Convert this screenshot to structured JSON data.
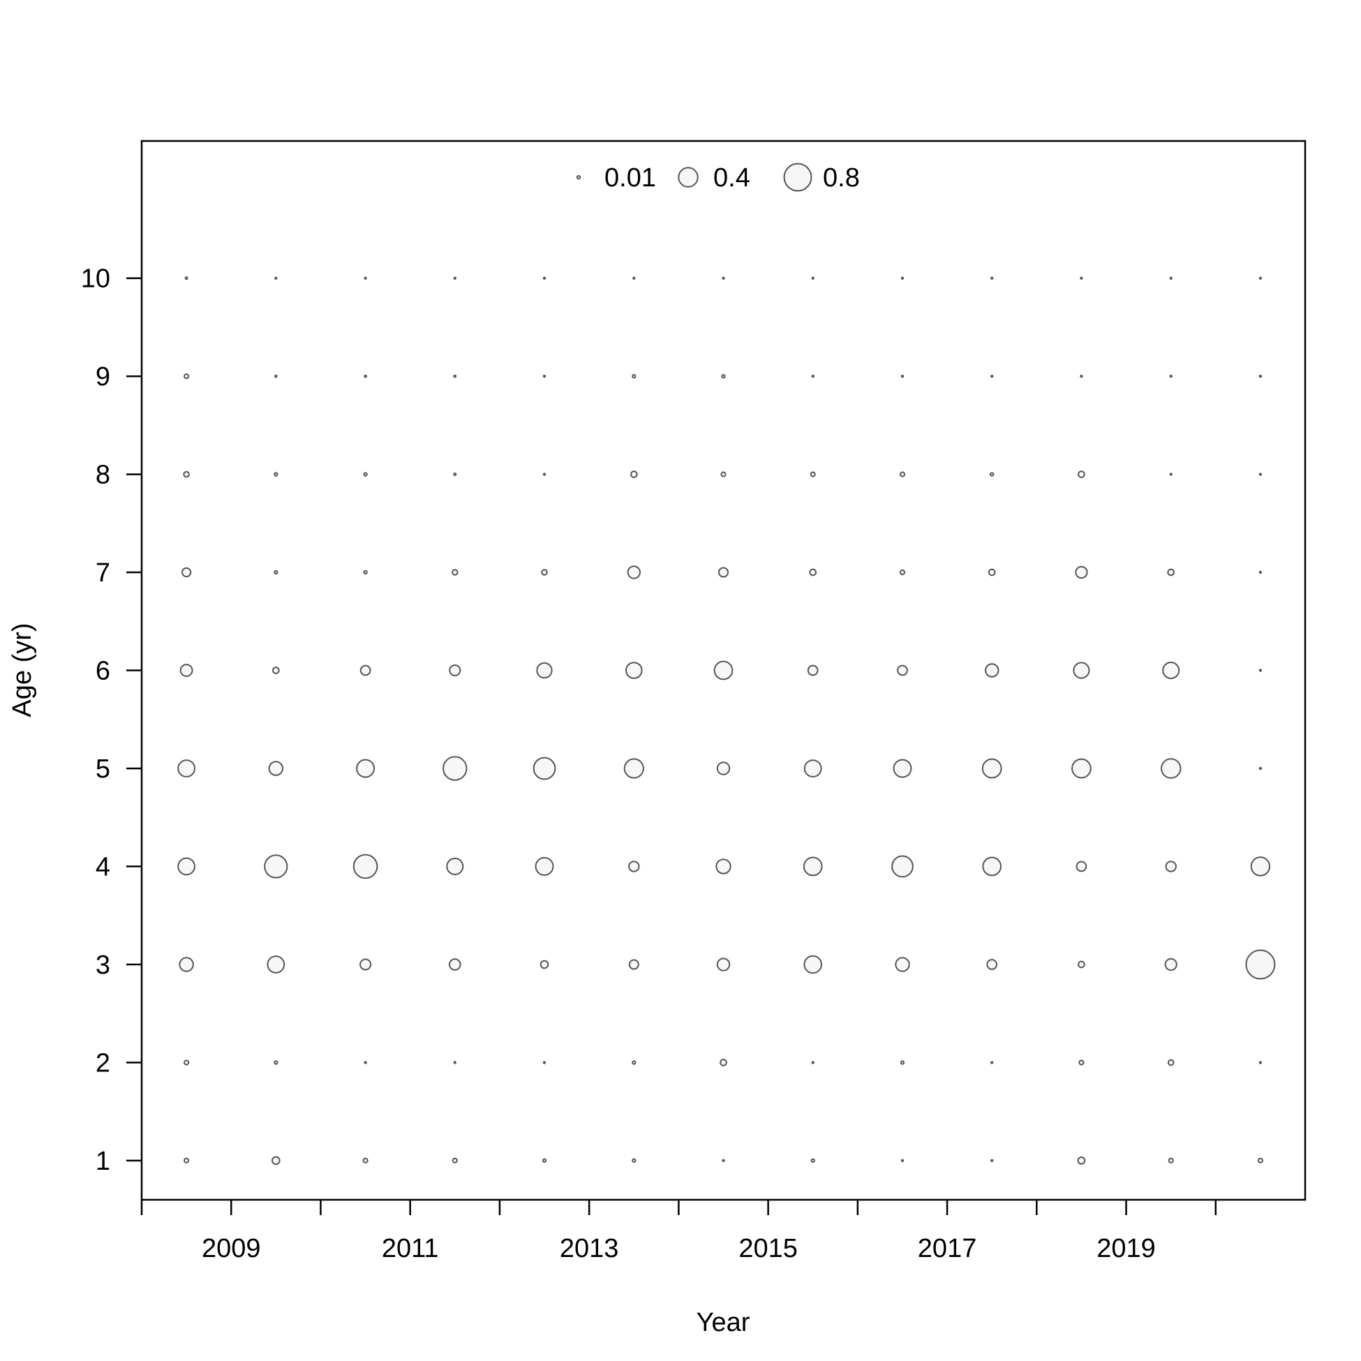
{
  "chart_data": {
    "type": "scatter",
    "subtype": "bubble",
    "title": "",
    "xlabel": "Year",
    "ylabel": "Age (yr)",
    "xlim": [
      2008,
      2021
    ],
    "ylim": [
      0.6,
      11.4
    ],
    "x_ticks": [
      2008,
      2009,
      2010,
      2011,
      2012,
      2013,
      2014,
      2015,
      2016,
      2017,
      2018,
      2019,
      2020
    ],
    "x_tick_labels": [
      "2009",
      "2011",
      "2013",
      "2015",
      "2017",
      "2019"
    ],
    "x_tick_label_values": [
      2009,
      2011,
      2013,
      2015,
      2017,
      2019
    ],
    "y_ticks": [
      1,
      2,
      3,
      4,
      5,
      6,
      7,
      8,
      9,
      10
    ],
    "y_tick_labels": [
      "1",
      "2",
      "3",
      "4",
      "5",
      "6",
      "7",
      "8",
      "9",
      "10"
    ],
    "grid": false,
    "legend": {
      "placement": "top-center",
      "entries": [
        {
          "label": "0.01",
          "value": 0.01
        },
        {
          "label": "0.4",
          "value": 0.4
        },
        {
          "label": "0.8",
          "value": 0.8
        }
      ]
    },
    "colors": {
      "stroke": "#555555",
      "fill": "#f7f7f7"
    },
    "years": [
      2008.5,
      2009.5,
      2010.5,
      2011.5,
      2012.5,
      2013.5,
      2014.5,
      2015.5,
      2016.5,
      2017.5,
      2018.5,
      2019.5,
      2020.5
    ],
    "ages": [
      1,
      2,
      3,
      4,
      5,
      6,
      7,
      8,
      9,
      10
    ],
    "values_by_year": [
      [
        0.02,
        0.02,
        0.2,
        0.3,
        0.3,
        0.15,
        0.08,
        0.03,
        0.02,
        0.005
      ],
      [
        0.06,
        0.01,
        0.3,
        0.55,
        0.2,
        0.04,
        0.01,
        0.01,
        0.004,
        0.003
      ],
      [
        0.02,
        0.003,
        0.12,
        0.6,
        0.33,
        0.1,
        0.01,
        0.01,
        0.004,
        0.003
      ],
      [
        0.02,
        0.003,
        0.13,
        0.28,
        0.59,
        0.12,
        0.03,
        0.005,
        0.004,
        0.003
      ],
      [
        0.01,
        0.003,
        0.06,
        0.33,
        0.5,
        0.24,
        0.03,
        0.003,
        0.003,
        0.003
      ],
      [
        0.01,
        0.01,
        0.09,
        0.11,
        0.39,
        0.27,
        0.16,
        0.04,
        0.01,
        0.003
      ],
      [
        0.003,
        0.04,
        0.16,
        0.22,
        0.16,
        0.35,
        0.09,
        0.02,
        0.01,
        0.003
      ],
      [
        0.01,
        0.003,
        0.32,
        0.35,
        0.3,
        0.1,
        0.04,
        0.02,
        0.003,
        0.003
      ],
      [
        0.003,
        0.01,
        0.2,
        0.47,
        0.33,
        0.1,
        0.02,
        0.02,
        0.003,
        0.003
      ],
      [
        0.003,
        0.003,
        0.1,
        0.35,
        0.38,
        0.18,
        0.04,
        0.01,
        0.003,
        0.003
      ],
      [
        0.05,
        0.02,
        0.04,
        0.1,
        0.38,
        0.26,
        0.14,
        0.04,
        0.003,
        0.003
      ],
      [
        0.02,
        0.03,
        0.14,
        0.11,
        0.4,
        0.28,
        0.04,
        0.003,
        0.003,
        0.003
      ],
      [
        0.02,
        0.003,
        0.89,
        0.37,
        0.003,
        0.003,
        0.003,
        0.003,
        0.003,
        0.003
      ]
    ]
  }
}
